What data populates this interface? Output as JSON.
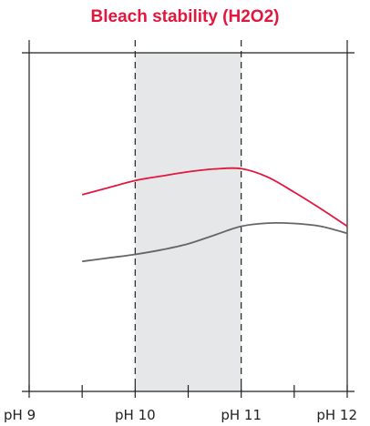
{
  "chart_data": {
    "type": "line",
    "title": "Bleach stability (H2O2)",
    "xlabel": "",
    "ylabel": "",
    "xlim": [
      9,
      12
    ],
    "ylim": [
      0,
      1
    ],
    "x_ticks": [
      9,
      9.5,
      10,
      10.5,
      11,
      11.5,
      12
    ],
    "x_tick_labels": [
      {
        "x": 9,
        "label": "pH 9"
      },
      {
        "x": 10,
        "label": "pH 10"
      },
      {
        "x": 11,
        "label": "pH 11"
      },
      {
        "x": 12,
        "label": "pH 12"
      }
    ],
    "shaded_band": {
      "x_from": 10,
      "x_to": 11,
      "color": "#e6e7e8"
    },
    "reference_lines": [
      10,
      11
    ],
    "grid": false,
    "series": [
      {
        "color": "#e2173d",
        "points": [
          [
            9.5,
            0.56
          ],
          [
            9.75,
            0.58
          ],
          [
            10,
            0.6
          ],
          [
            10.25,
            0.613
          ],
          [
            10.5,
            0.625
          ],
          [
            10.75,
            0.633
          ],
          [
            11,
            0.634
          ],
          [
            11.25,
            0.61
          ],
          [
            11.5,
            0.567
          ],
          [
            11.75,
            0.52
          ],
          [
            12,
            0.47
          ]
        ]
      },
      {
        "color": "#666666",
        "points": [
          [
            9.5,
            0.37
          ],
          [
            9.75,
            0.38
          ],
          [
            10,
            0.39
          ],
          [
            10.25,
            0.403
          ],
          [
            10.5,
            0.42
          ],
          [
            10.75,
            0.445
          ],
          [
            11,
            0.47
          ],
          [
            11.25,
            0.479
          ],
          [
            11.5,
            0.478
          ],
          [
            11.75,
            0.47
          ],
          [
            12,
            0.45
          ]
        ]
      }
    ]
  }
}
